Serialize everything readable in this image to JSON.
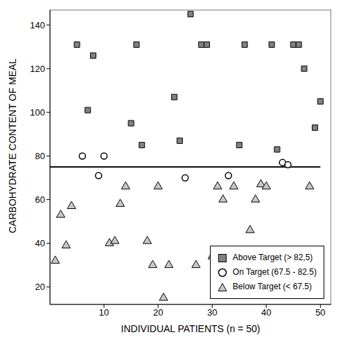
{
  "chart_data": {
    "type": "scatter",
    "x_label": "INDIVIDUAL PATIENTS (n = 50)",
    "y_label": "CARBOHYDRATE CONTENT OF MEAL",
    "xlim": [
      0,
      52
    ],
    "xticks": [
      10,
      20,
      30,
      40,
      50
    ],
    "ylim": [
      12,
      147
    ],
    "yticks": [
      20,
      40,
      60,
      80,
      100,
      120,
      140
    ],
    "legend": "lower right",
    "reference_line": {
      "y": 75,
      "x": [
        0,
        50
      ]
    },
    "series": [
      {
        "name": "Above Target (> 82,5)",
        "color": "#808080",
        "marker": "square",
        "x": [
          5,
          7,
          8,
          15,
          16,
          17,
          23,
          24,
          26,
          28,
          29,
          35,
          36,
          41,
          42,
          45,
          46,
          47,
          49,
          50
        ],
        "values": [
          131,
          101,
          126,
          95,
          131,
          85,
          107,
          87,
          145,
          131,
          131,
          85,
          131,
          131,
          83,
          131,
          131,
          120,
          93,
          105
        ]
      },
      {
        "name": "On Target (67.5 - 82.5)",
        "color": "#ffffff",
        "marker": "circle",
        "x": [
          6,
          9,
          10,
          25,
          33,
          43,
          44
        ],
        "values": [
          80,
          71,
          80,
          70,
          71,
          77,
          76
        ]
      },
      {
        "name": "Below Target (< 67.5)",
        "color": "#c8c8c8",
        "marker": "triangle",
        "x": [
          1,
          2,
          3,
          4,
          11,
          12,
          13,
          14,
          18,
          19,
          20,
          21,
          22,
          27,
          30,
          31,
          32,
          34,
          37,
          38,
          39,
          40,
          48
        ],
        "values": [
          32,
          53,
          39,
          57,
          40,
          41,
          58,
          66,
          41,
          30,
          66,
          15,
          30,
          30,
          34,
          66,
          60,
          66,
          46,
          60,
          67,
          66,
          66
        ]
      }
    ]
  }
}
